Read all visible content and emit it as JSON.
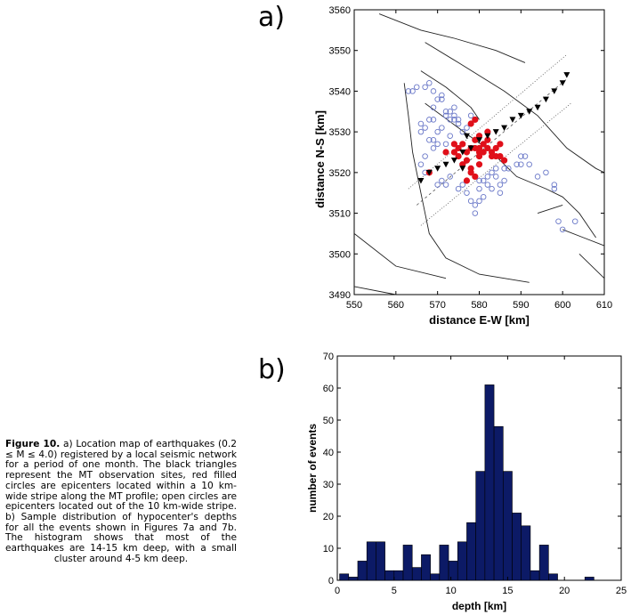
{
  "panel_labels": {
    "a": "a)",
    "b": "b)"
  },
  "caption": {
    "heading": "Figure 10.",
    "body": " a) Location map of earthquakes (0.2 ≤ M ≤ 4.0) registered by a local seismic network for a period of one month. The black triangles represent the MT observation sites, red filled circles are epicenters located within a 10 km-wide stripe along the MT profile; open circles are epicenters located out of the 10 km-wide stripe. b) Sample distribution of hypocenter's depths for all the events shown in Figures 7a and 7b. The histogram shows that most of the earthquakes are 14-15 km deep, with a small cluster around 4-5 km deep."
  },
  "colors": {
    "open_circle": "#6a78c8",
    "red_circle": "#e0101a",
    "bar": "#0c1a66",
    "line": "#222222"
  },
  "chart_data": [
    {
      "type": "scatter",
      "title": "",
      "xlabel": "distance E-W [km]",
      "ylabel": "distance N-S [km]",
      "xlim": [
        550,
        610
      ],
      "ylim": [
        3490,
        3560
      ],
      "xticks": [
        550,
        560,
        570,
        580,
        590,
        600,
        610
      ],
      "yticks": [
        3490,
        3500,
        3510,
        3520,
        3530,
        3540,
        3550,
        3560
      ],
      "series": [
        {
          "name": "MT observation sites",
          "marker": "triangle-down",
          "points": [
            [
              566,
              3518
            ],
            [
              568,
              3520
            ],
            [
              570,
              3521
            ],
            [
              572,
              3522
            ],
            [
              574,
              3523
            ],
            [
              576,
              3525
            ],
            [
              578,
              3526
            ],
            [
              580,
              3528
            ],
            [
              582,
              3529
            ],
            [
              584,
              3530
            ],
            [
              586,
              3531
            ],
            [
              588,
              3533
            ],
            [
              590,
              3534
            ],
            [
              592,
              3535
            ],
            [
              594,
              3536
            ],
            [
              596,
              3538
            ],
            [
              598,
              3540
            ],
            [
              600,
              3542
            ],
            [
              601,
              3544
            ],
            [
              577,
              3529
            ],
            [
              576,
              3521
            ]
          ]
        },
        {
          "name": "Epicenters within 10 km stripe",
          "marker": "filled-circle",
          "points": [
            [
              574,
              3525
            ],
            [
              574,
              3527
            ],
            [
              575,
              3526
            ],
            [
              575,
              3524
            ],
            [
              576,
              3522
            ],
            [
              576,
              3527
            ],
            [
              577,
              3525
            ],
            [
              577,
              3523
            ],
            [
              578,
              3526
            ],
            [
              578,
              3521
            ],
            [
              578,
              3520
            ],
            [
              578,
              3532
            ],
            [
              579,
              3533
            ],
            [
              579,
              3528
            ],
            [
              579,
              3526
            ],
            [
              580,
              3526
            ],
            [
              580,
              3525
            ],
            [
              580,
              3529
            ],
            [
              580,
              3522
            ],
            [
              581,
              3525
            ],
            [
              581,
              3527
            ],
            [
              582,
              3528
            ],
            [
              582,
              3530
            ],
            [
              582,
              3526
            ],
            [
              583,
              3525
            ],
            [
              583,
              3524
            ],
            [
              584,
              3524
            ],
            [
              584,
              3526
            ],
            [
              585,
              3524
            ],
            [
              585,
              3527
            ],
            [
              586,
              3523
            ],
            [
              579,
              3519
            ],
            [
              580,
              3524
            ],
            [
              572,
              3525
            ],
            [
              568,
              3520
            ],
            [
              577,
              3518
            ]
          ]
        },
        {
          "name": "Epicenters outside stripe",
          "marker": "open-circle",
          "points": [
            [
              564,
              3540
            ],
            [
              565,
              3541
            ],
            [
              563,
              3540
            ],
            [
              567,
              3541
            ],
            [
              568,
              3542
            ],
            [
              569,
              3540
            ],
            [
              570,
              3538
            ],
            [
              571,
              3538
            ],
            [
              569,
              3536
            ],
            [
              566,
              3532
            ],
            [
              566,
              3530
            ],
            [
              567,
              3531
            ],
            [
              568,
              3533
            ],
            [
              569,
              3533
            ],
            [
              570,
              3530
            ],
            [
              571,
              3531
            ],
            [
              572,
              3535
            ],
            [
              572,
              3534
            ],
            [
              573,
              3533
            ],
            [
              573,
              3535
            ],
            [
              574,
              3533
            ],
            [
              574,
              3534
            ],
            [
              575,
              3533
            ],
            [
              575,
              3532
            ],
            [
              576,
              3530
            ],
            [
              574,
              3536
            ],
            [
              573,
              3529
            ],
            [
              572,
              3527
            ],
            [
              570,
              3527
            ],
            [
              569,
              3526
            ],
            [
              568,
              3528
            ],
            [
              567,
              3524
            ],
            [
              566,
              3522
            ],
            [
              567,
              3520
            ],
            [
              570,
              3517
            ],
            [
              571,
              3518
            ],
            [
              572,
              3517
            ],
            [
              573,
              3519
            ],
            [
              575,
              3516
            ],
            [
              576,
              3517
            ],
            [
              577,
              3515
            ],
            [
              578,
              3513
            ],
            [
              579,
              3512
            ],
            [
              580,
              3513
            ],
            [
              579,
              3510
            ],
            [
              581,
              3514
            ],
            [
              580,
              3516
            ],
            [
              581,
              3518
            ],
            [
              582,
              3519
            ],
            [
              582,
              3517
            ],
            [
              583,
              3516
            ],
            [
              584,
              3519
            ],
            [
              585,
              3517
            ],
            [
              586,
              3518
            ],
            [
              585,
              3515
            ],
            [
              584,
              3521
            ],
            [
              586,
              3521
            ],
            [
              587,
              3521
            ],
            [
              590,
              3524
            ],
            [
              590,
              3522
            ],
            [
              591,
              3524
            ],
            [
              592,
              3522
            ],
            [
              594,
              3519
            ],
            [
              598,
              3516
            ],
            [
              598,
              3517
            ],
            [
              596,
              3520
            ],
            [
              599,
              3508
            ],
            [
              600,
              3506
            ],
            [
              603,
              3508
            ],
            [
              589,
              3522
            ],
            [
              577,
              3531
            ],
            [
              578,
              3534
            ],
            [
              571,
              3539
            ],
            [
              569,
              3528
            ],
            [
              583,
              3520
            ],
            [
              580,
              3518
            ]
          ]
        }
      ]
    },
    {
      "type": "bar",
      "title": "",
      "xlabel": "depth [km]",
      "ylabel": "number of events",
      "xlim": [
        0,
        25
      ],
      "ylim": [
        0,
        70
      ],
      "xticks": [
        0,
        5,
        10,
        15,
        20,
        25
      ],
      "yticks": [
        0,
        10,
        20,
        30,
        40,
        50,
        60,
        70
      ],
      "bin_width": 0.8,
      "bin_starts": [
        0.2,
        1.0,
        1.8,
        2.6,
        3.4,
        4.2,
        5.0,
        5.8,
        6.6,
        7.4,
        8.2,
        9.0,
        9.8,
        10.6,
        11.4,
        12.2,
        13.0,
        13.8,
        14.6,
        15.4,
        16.2,
        17.0,
        17.8,
        18.6,
        19.4,
        20.2,
        21.0,
        21.8,
        22.6
      ],
      "values": [
        2,
        1,
        6,
        12,
        12,
        3,
        3,
        11,
        4,
        8,
        2,
        11,
        6,
        12,
        18,
        34,
        61,
        48,
        34,
        21,
        17,
        3,
        11,
        2,
        0,
        0,
        0,
        1,
        0
      ]
    }
  ]
}
